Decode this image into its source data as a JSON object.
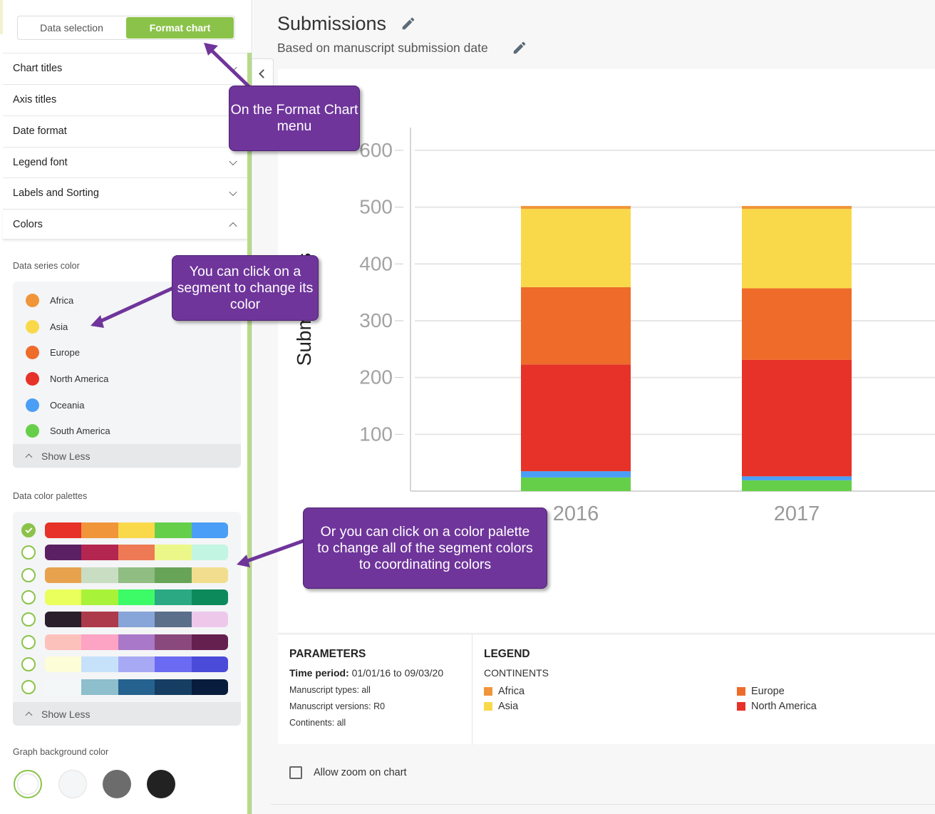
{
  "panel": {
    "tabs": [
      {
        "label": "Data selection",
        "active": false
      },
      {
        "label": "Format chart",
        "active": true
      }
    ],
    "sections": [
      {
        "label": "Chart titles",
        "state": "collapsed"
      },
      {
        "label": "Axis titles",
        "state": "collapsed"
      },
      {
        "label": "Date format",
        "state": "collapsed"
      },
      {
        "label": "Legend font",
        "state": "collapsed"
      },
      {
        "label": "Labels and Sorting",
        "state": "collapsed"
      },
      {
        "label": "Colors",
        "state": "expanded"
      }
    ],
    "colors": {
      "series_label": "Data series color",
      "series": [
        {
          "name": "Africa",
          "color": "#f0953a"
        },
        {
          "name": "Asia",
          "color": "#f9d94a"
        },
        {
          "name": "Europe",
          "color": "#ee6b2a"
        },
        {
          "name": "North America",
          "color": "#e63228"
        },
        {
          "name": "Oceania",
          "color": "#4a9ef5"
        },
        {
          "name": "South America",
          "color": "#66cf4a"
        }
      ],
      "show_less": "Show Less",
      "palettes_label": "Data color palettes",
      "selected_palette": 0,
      "palettes": [
        [
          "#e63228",
          "#f0953a",
          "#f9d94a",
          "#66cf4a",
          "#4a9ef5"
        ],
        [
          "#5b1f64",
          "#b32650",
          "#ee7a55",
          "#ecf78a",
          "#c2f6e2"
        ],
        [
          "#e8a24e",
          "#c9ddc2",
          "#8fbd82",
          "#67a458",
          "#f2dd8f"
        ],
        [
          "#eaff5c",
          "#a9f23a",
          "#3dfa67",
          "#2aa983",
          "#0c8a5b"
        ],
        [
          "#2b1f2c",
          "#ad3a4a",
          "#87a5d8",
          "#5b6f8b",
          "#eec8eb"
        ],
        [
          "#fdc1bb",
          "#fda3c4",
          "#a978c9",
          "#8a497c",
          "#65204f"
        ],
        [
          "#fdfdd8",
          "#c6e2fb",
          "#a8a9f4",
          "#6a6af2",
          "#4a4bd8"
        ],
        [
          "#f4f7f8",
          "#8dbfcc",
          "#25628f",
          "#153e62",
          "#081c3d"
        ]
      ],
      "background_label": "Graph background color",
      "background_options": [
        "#ffffff",
        "#f5f6f7",
        "#6c6c6c",
        "#222222"
      ],
      "background_selected": 0
    }
  },
  "main": {
    "title": "Submissions",
    "subtitle": "Based on manuscript submission date",
    "parameters": {
      "heading": "PARAMETERS",
      "time_label": "Time period:",
      "time_value": "01/01/16 to 09/03/20",
      "lines": [
        "Manuscript types: all",
        "Manuscript versions: R0",
        "Continents: all"
      ]
    },
    "legend": {
      "heading": "LEGEND",
      "subheading": "CONTINENTS",
      "items": [
        {
          "name": "Africa",
          "color": "#f0953a"
        },
        {
          "name": "Asia",
          "color": "#f9d94a"
        },
        {
          "name": "Europe",
          "color": "#ee6b2a"
        },
        {
          "name": "North America",
          "color": "#e63228"
        }
      ]
    },
    "zoom_label": "Allow zoom on chart",
    "zoom_checked": false
  },
  "chart_data": {
    "type": "bar",
    "stacked": true,
    "categories": [
      "2016",
      "2017"
    ],
    "ylabel": "Submissions",
    "yticks": [
      100,
      200,
      300,
      400,
      500,
      600
    ],
    "ylim": [
      0,
      640
    ],
    "grid": true,
    "series": [
      {
        "name": "South America",
        "color": "#66cf4a",
        "values": [
          24,
          19
        ]
      },
      {
        "name": "Oceania",
        "color": "#4a9ef5",
        "values": [
          11,
          7
        ]
      },
      {
        "name": "North America",
        "color": "#e63228",
        "values": [
          188,
          205
        ]
      },
      {
        "name": "Europe",
        "color": "#ee6b2a",
        "values": [
          136,
          126
        ]
      },
      {
        "name": "Asia",
        "color": "#f9d94a",
        "values": [
          138,
          140
        ]
      },
      {
        "name": "Africa",
        "color": "#f0953a",
        "values": [
          5,
          5
        ]
      }
    ]
  },
  "annotations": [
    {
      "text": "On the Format Chart menu"
    },
    {
      "text": "You can click on a segment to change its color"
    },
    {
      "text": "Or you can click on a color palette to change all of the segment colors to coordinating colors"
    }
  ]
}
